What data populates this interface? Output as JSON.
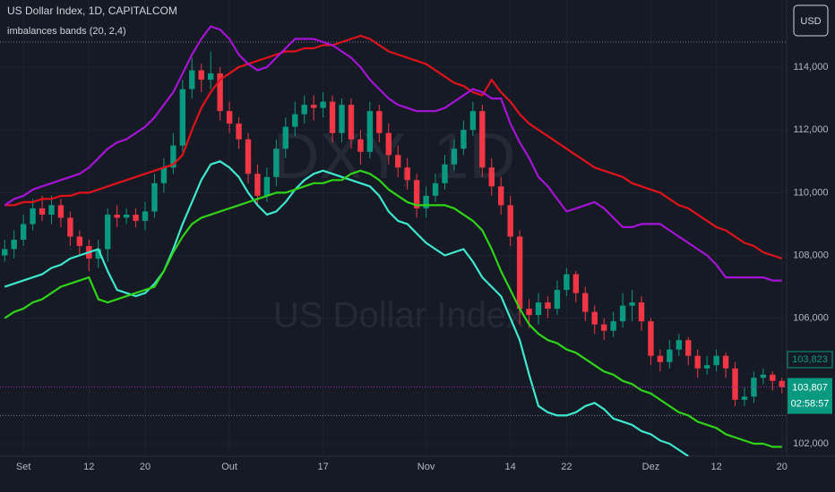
{
  "chart_data": {
    "type": "candlestick",
    "title": "US Dollar Index, 1D, CAPITALCOM",
    "subtitle": "imbalances bands (20, 2,4)",
    "currency": "USD",
    "watermark": {
      "symbol": "DXY, 1D",
      "name": "US Dollar Index"
    },
    "countdown": "02:58:57",
    "background": "#161a25",
    "grid": true,
    "up_color": "#089981",
    "down_color": "#f23645",
    "ylim": [
      101600,
      116140
    ],
    "yticks": [
      {
        "value": 102000,
        "label": "102,000"
      },
      {
        "value": 106000,
        "label": "106,000"
      },
      {
        "value": 108000,
        "label": "108,000"
      },
      {
        "value": 110000,
        "label": "110,000"
      },
      {
        "value": 112000,
        "label": "112,000"
      },
      {
        "value": 114000,
        "label": "114,000"
      }
    ],
    "categories": [
      null,
      null,
      "Set",
      null,
      null,
      null,
      null,
      null,
      null,
      "12",
      null,
      null,
      null,
      null,
      null,
      "20",
      null,
      null,
      null,
      null,
      null,
      null,
      null,
      null,
      "Out",
      null,
      null,
      null,
      null,
      null,
      null,
      null,
      null,
      null,
      "17",
      null,
      null,
      null,
      null,
      null,
      null,
      null,
      null,
      null,
      null,
      "Nov",
      null,
      null,
      null,
      null,
      null,
      null,
      null,
      null,
      "14",
      null,
      null,
      null,
      null,
      null,
      "22",
      null,
      null,
      null,
      null,
      null,
      null,
      null,
      null,
      "Dez",
      null,
      null,
      null,
      null,
      null,
      null,
      "12",
      null,
      null,
      null,
      null,
      null,
      null,
      "20"
    ],
    "open": [
      108000,
      108200,
      108500,
      109000,
      109500,
      109300,
      109600,
      109200,
      108600,
      108300,
      107900,
      108200,
      109300,
      109200,
      109300,
      109100,
      109400,
      110300,
      110800,
      111500,
      113300,
      113900,
      113600,
      113800,
      112600,
      112200,
      111700,
      110600,
      109900,
      110500,
      111400,
      112100,
      112500,
      112800,
      112700,
      112900,
      111900,
      112800,
      111700,
      111300,
      112600,
      111900,
      111200,
      110800,
      110400,
      109500,
      109900,
      110300,
      110900,
      111400,
      112000,
      112600,
      110800,
      110200,
      109600,
      108600,
      106300,
      106100,
      106500,
      106300,
      106900,
      107400,
      106800,
      106200,
      105800,
      105600,
      105900,
      106400,
      106500,
      105900,
      104800,
      104600,
      105000,
      105300,
      104800,
      104400,
      104500,
      104800,
      104400,
      103400,
      103500,
      104100,
      104200,
      104000
    ],
    "high": [
      108500,
      108800,
      109300,
      109800,
      109900,
      109900,
      109800,
      109400,
      108800,
      108500,
      108500,
      109500,
      109600,
      109500,
      109500,
      109700,
      110600,
      111100,
      111900,
      113600,
      114300,
      114100,
      114500,
      114000,
      112900,
      112400,
      111900,
      110900,
      110800,
      111700,
      112400,
      112900,
      113100,
      113100,
      113200,
      113100,
      113000,
      113000,
      112000,
      112900,
      112800,
      112200,
      111500,
      111100,
      110600,
      110200,
      110600,
      111200,
      111700,
      112300,
      112900,
      112800,
      111100,
      110500,
      109900,
      108800,
      106600,
      106800,
      106700,
      107200,
      107600,
      107500,
      107000,
      106400,
      106000,
      106200,
      106800,
      106900,
      106700,
      106000,
      105000,
      105300,
      105500,
      105400,
      105000,
      104800,
      105000,
      104900,
      104600,
      103800,
      104300,
      104400,
      104300,
      104100
    ],
    "low": [
      107800,
      107900,
      108300,
      108800,
      109100,
      109000,
      108900,
      108300,
      108000,
      107500,
      107600,
      107800,
      108900,
      109000,
      108900,
      108800,
      109200,
      110000,
      110600,
      111300,
      113000,
      113200,
      113300,
      112300,
      111900,
      111400,
      110300,
      109600,
      109700,
      110200,
      111100,
      111800,
      112200,
      112300,
      112400,
      111600,
      111600,
      111400,
      110900,
      111100,
      111600,
      110900,
      110500,
      110100,
      109200,
      109200,
      109700,
      110100,
      110700,
      111200,
      111800,
      110500,
      109900,
      109300,
      108300,
      105800,
      105700,
      105800,
      106000,
      106100,
      106700,
      106500,
      105900,
      105500,
      105300,
      105400,
      105700,
      105900,
      105600,
      104500,
      104300,
      104400,
      104800,
      104500,
      104100,
      104200,
      104300,
      104100,
      103200,
      103200,
      103300,
      103900,
      103700,
      103600
    ],
    "close": [
      108200,
      108500,
      109000,
      109500,
      109300,
      109600,
      109200,
      108600,
      108300,
      107900,
      108200,
      109300,
      109200,
      109300,
      109100,
      109400,
      110300,
      110800,
      111500,
      113300,
      113900,
      113600,
      113800,
      112600,
      112200,
      111700,
      110600,
      109900,
      110500,
      111400,
      112100,
      112500,
      112800,
      112700,
      112900,
      111900,
      112800,
      111700,
      111300,
      112600,
      111900,
      111200,
      110800,
      110400,
      109500,
      109900,
      110300,
      110900,
      111400,
      112000,
      112600,
      110800,
      110200,
      109600,
      108600,
      106300,
      106100,
      106500,
      106300,
      106900,
      107400,
      106800,
      106200,
      105800,
      105600,
      105900,
      106400,
      106500,
      105900,
      104800,
      104600,
      105000,
      105300,
      104800,
      104400,
      104500,
      104800,
      104400,
      103400,
      103500,
      104100,
      104200,
      104000,
      103800
    ],
    "series": [
      {
        "color": "#e0131c",
        "values": [
          109600,
          109600,
          109700,
          109700,
          109800,
          109800,
          109900,
          109900,
          110000,
          110000,
          110100,
          110200,
          110300,
          110400,
          110500,
          110600,
          110700,
          110800,
          110900,
          111200,
          112000,
          112700,
          113200,
          113600,
          113800,
          114000,
          114100,
          114200,
          114300,
          114400,
          114500,
          114500,
          114600,
          114600,
          114700,
          114700,
          114800,
          114900,
          115000,
          114900,
          114700,
          114500,
          114400,
          114300,
          114200,
          114100,
          113900,
          113700,
          113500,
          113400,
          113200,
          113100,
          113600,
          113200,
          112900,
          112500,
          112200,
          112000,
          111800,
          111600,
          111400,
          111200,
          111000,
          110800,
          110700,
          110600,
          110500,
          110300,
          110200,
          110100,
          110000,
          109800,
          109600,
          109500,
          109300,
          109100,
          108900,
          108800,
          108600,
          108400,
          108300,
          108100,
          108000,
          107900
        ]
      },
      {
        "color": "#a514d6",
        "values": [
          109600,
          109800,
          109900,
          110100,
          110200,
          110300,
          110400,
          110500,
          110600,
          110800,
          111100,
          111400,
          111600,
          111700,
          111900,
          112100,
          112400,
          112800,
          113200,
          113800,
          114400,
          114900,
          115300,
          115200,
          114900,
          114400,
          114100,
          113900,
          114000,
          114300,
          114600,
          114900,
          114900,
          114900,
          114800,
          114700,
          114500,
          114300,
          114000,
          113600,
          113300,
          113000,
          112800,
          112700,
          112600,
          112600,
          112600,
          112700,
          112900,
          113100,
          113300,
          113200,
          113000,
          113000,
          112200,
          111600,
          111100,
          110500,
          110200,
          109800,
          109400,
          109500,
          109600,
          109700,
          109500,
          109200,
          108900,
          108900,
          109000,
          109000,
          109000,
          108800,
          108600,
          108400,
          108200,
          108000,
          107700,
          107300,
          107300,
          107300,
          107300,
          107300,
          107200,
          107200
        ]
      },
      {
        "color": "#3ee8cf",
        "values": [
          107000,
          107100,
          107200,
          107300,
          107400,
          107600,
          107700,
          107900,
          108000,
          108100,
          108200,
          107500,
          106900,
          106800,
          106700,
          106800,
          107100,
          107500,
          108200,
          109000,
          109700,
          110400,
          110900,
          111000,
          110800,
          110500,
          110000,
          109600,
          109300,
          109400,
          109700,
          110100,
          110400,
          110600,
          110700,
          110600,
          110500,
          110400,
          110300,
          110200,
          109900,
          109400,
          109100,
          109000,
          108700,
          108400,
          108200,
          108000,
          108100,
          108200,
          107800,
          107300,
          107000,
          106700,
          106000,
          105300,
          104200,
          103200,
          103000,
          102900,
          102900,
          103000,
          103200,
          103300,
          103100,
          102800,
          102700,
          102600,
          102400,
          102300,
          102100,
          102000,
          101800,
          101600,
          null,
          null,
          null,
          null,
          null,
          null,
          null,
          null,
          null,
          null
        ]
      },
      {
        "color": "#2fd318",
        "values": [
          106000,
          106200,
          106300,
          106500,
          106600,
          106800,
          107000,
          107100,
          107200,
          107300,
          106600,
          106500,
          106600,
          106700,
          106800,
          106900,
          107000,
          107500,
          108100,
          108600,
          109000,
          109200,
          109300,
          109400,
          109500,
          109600,
          109700,
          109800,
          109900,
          110000,
          110000,
          110100,
          110200,
          110300,
          110300,
          110400,
          110400,
          110600,
          110700,
          110600,
          110400,
          110100,
          109900,
          109700,
          109600,
          109600,
          109600,
          109600,
          109500,
          109300,
          109100,
          108800,
          108200,
          107500,
          106900,
          106300,
          105800,
          105500,
          105300,
          105200,
          105000,
          104900,
          104700,
          104500,
          104300,
          104200,
          104000,
          103900,
          103700,
          103600,
          103400,
          103200,
          103000,
          102900,
          102700,
          102600,
          102500,
          102300,
          102200,
          102100,
          102000,
          102000,
          101900,
          101900
        ]
      }
    ],
    "reference_lines": [
      114800,
      102900
    ],
    "last_price": {
      "value": 103807,
      "label": "103,807",
      "color": "#089981",
      "line_color": "#9c27b0"
    },
    "prev_price": {
      "value": 103823,
      "label": "103,823"
    }
  }
}
